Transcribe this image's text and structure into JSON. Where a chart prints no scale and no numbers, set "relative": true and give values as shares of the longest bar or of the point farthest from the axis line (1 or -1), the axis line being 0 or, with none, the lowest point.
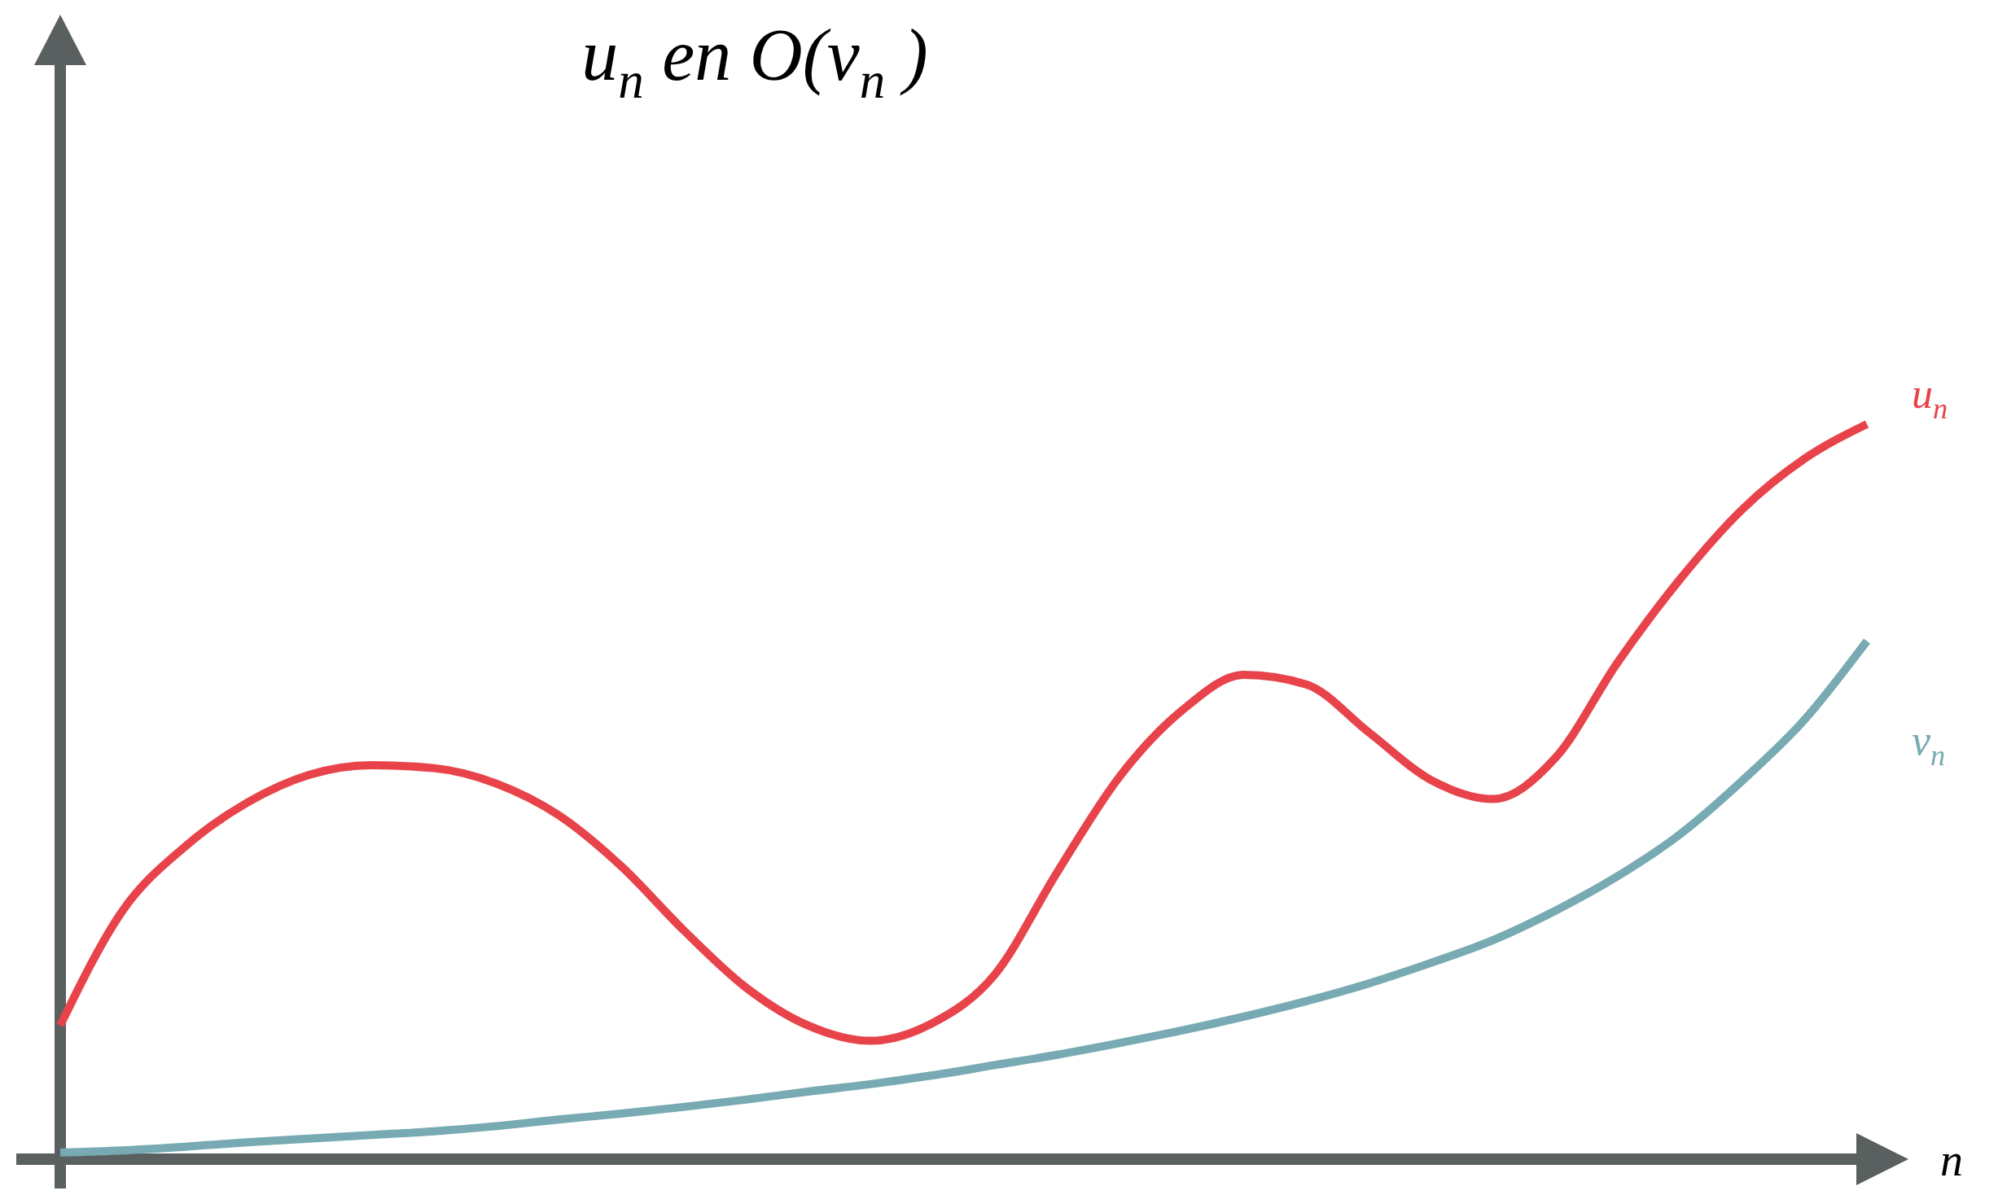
{
  "chart_data": {
    "type": "line",
    "title": "u$_{n}$ en O(v$_{n}$)",
    "xlabel": "n",
    "relative": true,
    "legend": false,
    "marker": "none",
    "line_style": "solid",
    "categories": [
      null,
      null,
      null,
      null,
      null,
      null,
      null,
      null,
      null,
      null,
      null,
      null,
      null,
      null,
      null,
      null,
      null,
      null,
      null,
      null,
      null,
      null,
      null,
      null,
      null,
      null,
      null,
      null,
      null,
      null
    ],
    "series": [
      {
        "name": "u$_{n}$",
        "color": "#e8434a",
        "values": [
          0.182,
          0.338,
          0.425,
          0.485,
          0.523,
          0.536,
          0.532,
          0.511,
          0.468,
          0.399,
          0.312,
          0.234,
          0.182,
          0.161,
          0.185,
          0.251,
          0.39,
          0.52,
          0.61,
          0.659,
          0.646,
          0.581,
          0.516,
          0.49,
          0.546,
          0.676,
          0.789,
          0.884,
          0.953,
          1.0
        ]
      },
      {
        "name": "v$_{n}$",
        "color": "#77aab2",
        "values": [
          0.009,
          0.012,
          0.017,
          0.023,
          0.028,
          0.033,
          0.038,
          0.045,
          0.054,
          0.062,
          0.071,
          0.081,
          0.092,
          0.102,
          0.114,
          0.128,
          0.142,
          0.158,
          0.175,
          0.194,
          0.215,
          0.239,
          0.267,
          0.298,
          0.338,
          0.385,
          0.442,
          0.515,
          0.598,
          0.705
        ]
      }
    ]
  }
}
